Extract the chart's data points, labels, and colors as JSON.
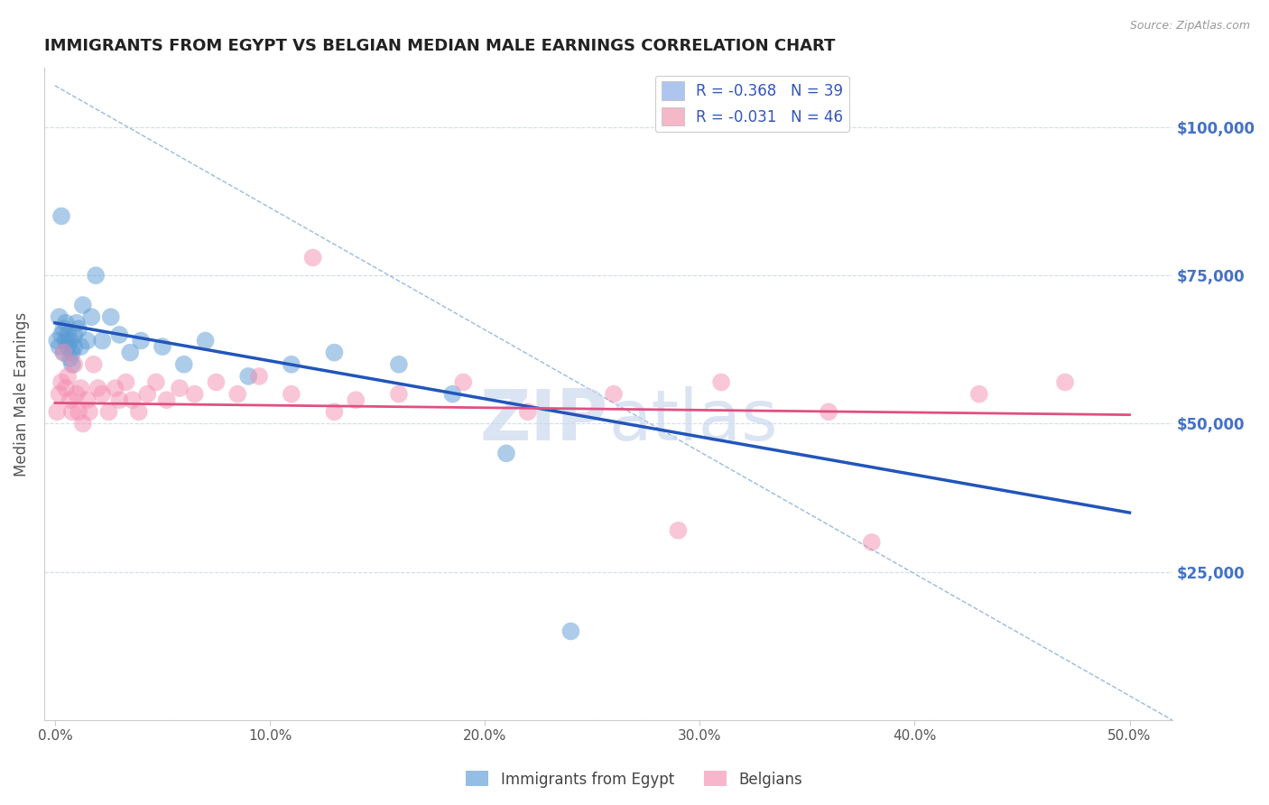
{
  "title": "IMMIGRANTS FROM EGYPT VS BELGIAN MEDIAN MALE EARNINGS CORRELATION CHART",
  "source_text": "Source: ZipAtlas.com",
  "ylabel": "Median Male Earnings",
  "x_ticks": [
    0.0,
    0.1,
    0.2,
    0.3,
    0.4,
    0.5
  ],
  "x_tick_labels": [
    "0.0%",
    "10.0%",
    "20.0%",
    "30.0%",
    "40.0%",
    "50.0%"
  ],
  "y_ticks": [
    0,
    25000,
    50000,
    75000,
    100000
  ],
  "y_tick_labels_right": [
    "",
    "$25,000",
    "$50,000",
    "$75,000",
    "$100,000"
  ],
  "xlim": [
    -0.005,
    0.52
  ],
  "ylim": [
    0,
    110000
  ],
  "legend_entries": [
    {
      "label": "R = -0.368   N = 39",
      "color": "#aec6ef"
    },
    {
      "label": "R = -0.031   N = 46",
      "color": "#f4b8c8"
    }
  ],
  "legend_labels_bottom": [
    "Immigrants from Egypt",
    "Belgians"
  ],
  "blue_scatter_x": [
    0.001,
    0.002,
    0.002,
    0.003,
    0.003,
    0.004,
    0.004,
    0.005,
    0.005,
    0.006,
    0.006,
    0.007,
    0.007,
    0.008,
    0.008,
    0.009,
    0.009,
    0.01,
    0.011,
    0.012,
    0.013,
    0.015,
    0.017,
    0.019,
    0.022,
    0.026,
    0.03,
    0.035,
    0.04,
    0.05,
    0.06,
    0.07,
    0.09,
    0.11,
    0.13,
    0.16,
    0.185,
    0.21,
    0.24
  ],
  "blue_scatter_y": [
    64000,
    63000,
    68000,
    65000,
    85000,
    62000,
    66000,
    64000,
    67000,
    63000,
    65000,
    61000,
    64000,
    62000,
    60000,
    63000,
    65000,
    67000,
    66000,
    63000,
    70000,
    64000,
    68000,
    75000,
    64000,
    68000,
    65000,
    62000,
    64000,
    63000,
    60000,
    64000,
    58000,
    60000,
    62000,
    60000,
    55000,
    45000,
    15000
  ],
  "pink_scatter_x": [
    0.001,
    0.002,
    0.003,
    0.004,
    0.005,
    0.006,
    0.007,
    0.008,
    0.009,
    0.01,
    0.011,
    0.012,
    0.013,
    0.015,
    0.016,
    0.018,
    0.02,
    0.022,
    0.025,
    0.028,
    0.03,
    0.033,
    0.036,
    0.039,
    0.043,
    0.047,
    0.052,
    0.058,
    0.065,
    0.075,
    0.085,
    0.095,
    0.11,
    0.13,
    0.16,
    0.19,
    0.22,
    0.26,
    0.31,
    0.36,
    0.43,
    0.47,
    0.12,
    0.14,
    0.29,
    0.38
  ],
  "pink_scatter_y": [
    52000,
    55000,
    57000,
    62000,
    56000,
    58000,
    54000,
    52000,
    60000,
    55000,
    52000,
    56000,
    50000,
    54000,
    52000,
    60000,
    56000,
    55000,
    52000,
    56000,
    54000,
    57000,
    54000,
    52000,
    55000,
    57000,
    54000,
    56000,
    55000,
    57000,
    55000,
    58000,
    55000,
    52000,
    55000,
    57000,
    52000,
    55000,
    57000,
    52000,
    55000,
    57000,
    78000,
    54000,
    32000,
    30000
  ],
  "blue_line_x": [
    0.0,
    0.5
  ],
  "blue_line_y": [
    67000,
    35000
  ],
  "pink_line_x": [
    0.0,
    0.5
  ],
  "pink_line_y": [
    53500,
    51500
  ],
  "dash_line_x": [
    0.0,
    0.52
  ],
  "dash_line_y": [
    107000,
    0
  ],
  "blue_color": "#5b9bd5",
  "pink_color": "#f48fb1",
  "blue_line_color": "#2255bb",
  "pink_line_color": "#e05080",
  "dash_line_color": "#99bbdd",
  "background_color": "#ffffff",
  "plot_bg_color": "#ffffff",
  "grid_color": "#ccddee",
  "title_color": "#222222",
  "right_label_color": "#4472c4",
  "watermark_color": "#ccd9ee"
}
